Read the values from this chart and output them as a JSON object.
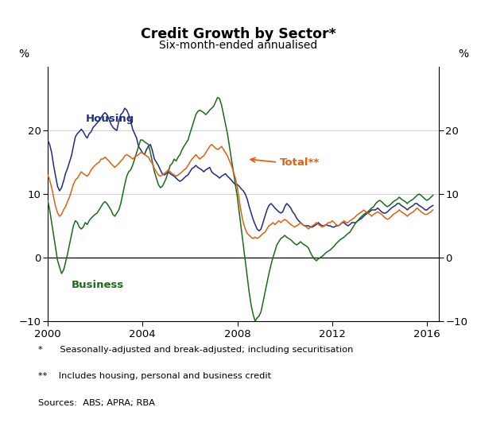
{
  "title": "Credit Growth by Sector*",
  "subtitle": "Six-month-ended annualised",
  "ylabel_left": "%",
  "ylabel_right": "%",
  "ylim": [
    -10,
    30
  ],
  "yticks": [
    -10,
    0,
    10,
    20
  ],
  "xlim": [
    2000.0,
    2016.5
  ],
  "xticks": [
    2000,
    2004,
    2008,
    2012,
    2016
  ],
  "colors": {
    "housing": "#1f2d7e",
    "business": "#1a6b1a",
    "total": "#e06010"
  },
  "footnote1": "*      Seasonally-adjusted and break-adjusted; including securitisation",
  "footnote2": "**    Includes housing, personal and business credit",
  "sources": "Sources:  ABS; APRA; RBA",
  "housing_label": "Housing",
  "business_label": "Business",
  "total_label": "Total**",
  "housing": {
    "t": [
      2000.0,
      2000.083,
      2000.167,
      2000.25,
      2000.333,
      2000.417,
      2000.5,
      2000.583,
      2000.667,
      2000.75,
      2000.833,
      2000.917,
      2001.0,
      2001.083,
      2001.167,
      2001.25,
      2001.333,
      2001.417,
      2001.5,
      2001.583,
      2001.667,
      2001.75,
      2001.833,
      2001.917,
      2002.0,
      2002.083,
      2002.167,
      2002.25,
      2002.333,
      2002.417,
      2002.5,
      2002.583,
      2002.667,
      2002.75,
      2002.833,
      2002.917,
      2003.0,
      2003.083,
      2003.167,
      2003.25,
      2003.333,
      2003.417,
      2003.5,
      2003.583,
      2003.667,
      2003.75,
      2003.833,
      2003.917,
      2004.0,
      2004.083,
      2004.167,
      2004.25,
      2004.333,
      2004.417,
      2004.5,
      2004.583,
      2004.667,
      2004.75,
      2004.833,
      2004.917,
      2005.0,
      2005.083,
      2005.167,
      2005.25,
      2005.333,
      2005.417,
      2005.5,
      2005.583,
      2005.667,
      2005.75,
      2005.833,
      2005.917,
      2006.0,
      2006.083,
      2006.167,
      2006.25,
      2006.333,
      2006.417,
      2006.5,
      2006.583,
      2006.667,
      2006.75,
      2006.833,
      2006.917,
      2007.0,
      2007.083,
      2007.167,
      2007.25,
      2007.333,
      2007.417,
      2007.5,
      2007.583,
      2007.667,
      2007.75,
      2007.833,
      2007.917,
      2008.0,
      2008.083,
      2008.167,
      2008.25,
      2008.333,
      2008.417,
      2008.5,
      2008.583,
      2008.667,
      2008.75,
      2008.833,
      2008.917,
      2009.0,
      2009.083,
      2009.167,
      2009.25,
      2009.333,
      2009.417,
      2009.5,
      2009.583,
      2009.667,
      2009.75,
      2009.833,
      2009.917,
      2010.0,
      2010.083,
      2010.167,
      2010.25,
      2010.333,
      2010.417,
      2010.5,
      2010.583,
      2010.667,
      2010.75,
      2010.833,
      2010.917,
      2011.0,
      2011.083,
      2011.167,
      2011.25,
      2011.333,
      2011.417,
      2011.5,
      2011.583,
      2011.667,
      2011.75,
      2011.833,
      2011.917,
      2012.0,
      2012.083,
      2012.167,
      2012.25,
      2012.333,
      2012.417,
      2012.5,
      2012.583,
      2012.667,
      2012.75,
      2012.833,
      2012.917,
      2013.0,
      2013.083,
      2013.167,
      2013.25,
      2013.333,
      2013.417,
      2013.5,
      2013.583,
      2013.667,
      2013.75,
      2013.833,
      2013.917,
      2014.0,
      2014.083,
      2014.167,
      2014.25,
      2014.333,
      2014.417,
      2014.5,
      2014.583,
      2014.667,
      2014.75,
      2014.833,
      2014.917,
      2015.0,
      2015.083,
      2015.167,
      2015.25,
      2015.333,
      2015.417,
      2015.5,
      2015.583,
      2015.667,
      2015.75,
      2015.833,
      2015.917,
      2016.0,
      2016.083,
      2016.167,
      2016.25
    ],
    "v": [
      18.5,
      17.8,
      16.5,
      14.5,
      12.8,
      11.2,
      10.5,
      11.0,
      12.0,
      13.2,
      14.0,
      15.0,
      16.0,
      17.5,
      19.0,
      19.5,
      19.8,
      20.2,
      19.8,
      19.2,
      18.8,
      19.5,
      19.8,
      20.5,
      20.8,
      21.2,
      21.5,
      22.0,
      22.5,
      22.8,
      22.5,
      21.8,
      21.0,
      20.5,
      20.2,
      20.0,
      21.5,
      22.5,
      22.8,
      23.5,
      23.2,
      22.5,
      21.5,
      20.2,
      19.5,
      18.8,
      17.5,
      17.0,
      16.5,
      16.2,
      17.0,
      17.5,
      17.8,
      16.8,
      15.5,
      15.0,
      14.5,
      13.8,
      13.2,
      13.0,
      13.2,
      13.5,
      13.2,
      13.0,
      12.8,
      12.5,
      12.2,
      12.0,
      12.2,
      12.5,
      12.8,
      13.0,
      13.5,
      14.0,
      14.2,
      14.5,
      14.2,
      14.0,
      13.8,
      13.5,
      13.8,
      14.0,
      14.2,
      13.5,
      13.2,
      13.0,
      12.8,
      12.5,
      12.8,
      13.0,
      13.2,
      12.8,
      12.5,
      12.2,
      11.8,
      11.5,
      11.5,
      11.2,
      10.8,
      10.5,
      10.0,
      9.2,
      8.0,
      7.0,
      6.0,
      5.2,
      4.5,
      4.2,
      4.5,
      5.5,
      6.5,
      7.5,
      8.2,
      8.5,
      8.2,
      7.8,
      7.5,
      7.2,
      7.0,
      7.2,
      8.0,
      8.5,
      8.2,
      7.8,
      7.2,
      6.8,
      6.2,
      5.8,
      5.5,
      5.2,
      5.0,
      5.0,
      5.0,
      4.8,
      4.8,
      5.0,
      5.2,
      5.5,
      5.2,
      5.0,
      5.0,
      5.2,
      5.0,
      5.0,
      4.8,
      4.8,
      5.0,
      5.0,
      5.2,
      5.5,
      5.5,
      5.2,
      5.0,
      5.2,
      5.5,
      5.5,
      5.5,
      5.8,
      6.0,
      6.2,
      6.5,
      6.8,
      7.0,
      7.2,
      7.5,
      7.5,
      7.5,
      7.8,
      7.5,
      7.2,
      7.0,
      7.0,
      7.2,
      7.5,
      7.8,
      8.0,
      8.2,
      8.5,
      8.5,
      8.2,
      8.0,
      7.8,
      7.5,
      7.8,
      8.0,
      8.2,
      8.5,
      8.5,
      8.2,
      8.0,
      7.8,
      7.5,
      7.5,
      7.8,
      8.0,
      8.2
    ]
  },
  "business": {
    "t": [
      2000.0,
      2000.083,
      2000.167,
      2000.25,
      2000.333,
      2000.417,
      2000.5,
      2000.583,
      2000.667,
      2000.75,
      2000.833,
      2000.917,
      2001.0,
      2001.083,
      2001.167,
      2001.25,
      2001.333,
      2001.417,
      2001.5,
      2001.583,
      2001.667,
      2001.75,
      2001.833,
      2001.917,
      2002.0,
      2002.083,
      2002.167,
      2002.25,
      2002.333,
      2002.417,
      2002.5,
      2002.583,
      2002.667,
      2002.75,
      2002.833,
      2002.917,
      2003.0,
      2003.083,
      2003.167,
      2003.25,
      2003.333,
      2003.417,
      2003.5,
      2003.583,
      2003.667,
      2003.75,
      2003.833,
      2003.917,
      2004.0,
      2004.083,
      2004.167,
      2004.25,
      2004.333,
      2004.417,
      2004.5,
      2004.583,
      2004.667,
      2004.75,
      2004.833,
      2004.917,
      2005.0,
      2005.083,
      2005.167,
      2005.25,
      2005.333,
      2005.417,
      2005.5,
      2005.583,
      2005.667,
      2005.75,
      2005.833,
      2005.917,
      2006.0,
      2006.083,
      2006.167,
      2006.25,
      2006.333,
      2006.417,
      2006.5,
      2006.583,
      2006.667,
      2006.75,
      2006.833,
      2006.917,
      2007.0,
      2007.083,
      2007.167,
      2007.25,
      2007.333,
      2007.417,
      2007.5,
      2007.583,
      2007.667,
      2007.75,
      2007.833,
      2007.917,
      2008.0,
      2008.083,
      2008.167,
      2008.25,
      2008.333,
      2008.417,
      2008.5,
      2008.583,
      2008.667,
      2008.75,
      2008.833,
      2008.917,
      2009.0,
      2009.083,
      2009.167,
      2009.25,
      2009.333,
      2009.417,
      2009.5,
      2009.583,
      2009.667,
      2009.75,
      2009.833,
      2009.917,
      2010.0,
      2010.083,
      2010.167,
      2010.25,
      2010.333,
      2010.417,
      2010.5,
      2010.583,
      2010.667,
      2010.75,
      2010.833,
      2010.917,
      2011.0,
      2011.083,
      2011.167,
      2011.25,
      2011.333,
      2011.417,
      2011.5,
      2011.583,
      2011.667,
      2011.75,
      2011.833,
      2011.917,
      2012.0,
      2012.083,
      2012.167,
      2012.25,
      2012.333,
      2012.417,
      2012.5,
      2012.583,
      2012.667,
      2012.75,
      2012.833,
      2012.917,
      2013.0,
      2013.083,
      2013.167,
      2013.25,
      2013.333,
      2013.417,
      2013.5,
      2013.583,
      2013.667,
      2013.75,
      2013.833,
      2013.917,
      2014.0,
      2014.083,
      2014.167,
      2014.25,
      2014.333,
      2014.417,
      2014.5,
      2014.583,
      2014.667,
      2014.75,
      2014.833,
      2014.917,
      2015.0,
      2015.083,
      2015.167,
      2015.25,
      2015.333,
      2015.417,
      2015.5,
      2015.583,
      2015.667,
      2015.75,
      2015.833,
      2015.917,
      2016.0,
      2016.083,
      2016.167,
      2016.25
    ],
    "v": [
      9.0,
      7.5,
      5.5,
      3.5,
      1.5,
      -0.5,
      -1.5,
      -2.5,
      -2.0,
      -0.8,
      0.5,
      2.0,
      3.5,
      5.0,
      5.8,
      5.5,
      4.8,
      4.5,
      4.8,
      5.5,
      5.2,
      5.8,
      6.2,
      6.5,
      6.8,
      7.0,
      7.5,
      8.0,
      8.5,
      8.8,
      8.5,
      8.0,
      7.5,
      6.8,
      6.5,
      7.0,
      7.5,
      8.5,
      10.0,
      11.5,
      12.8,
      13.5,
      13.8,
      14.5,
      15.5,
      16.5,
      17.5,
      18.5,
      18.5,
      18.2,
      18.0,
      17.8,
      16.5,
      15.0,
      13.5,
      12.5,
      11.5,
      11.0,
      11.2,
      11.8,
      12.5,
      13.5,
      14.5,
      14.8,
      15.5,
      15.2,
      15.8,
      16.2,
      17.0,
      17.5,
      18.0,
      18.5,
      19.5,
      20.5,
      21.5,
      22.5,
      23.0,
      23.2,
      23.0,
      22.8,
      22.5,
      22.8,
      23.2,
      23.5,
      23.8,
      24.5,
      25.2,
      25.0,
      24.0,
      22.5,
      21.0,
      19.5,
      17.5,
      15.5,
      13.5,
      11.5,
      9.5,
      7.0,
      4.5,
      2.0,
      -0.5,
      -3.0,
      -5.5,
      -7.5,
      -9.0,
      -10.0,
      -9.5,
      -9.2,
      -8.5,
      -7.0,
      -5.5,
      -4.0,
      -2.5,
      -1.2,
      0.0,
      1.0,
      2.0,
      2.5,
      3.0,
      3.2,
      3.5,
      3.2,
      3.0,
      2.8,
      2.5,
      2.2,
      2.0,
      2.2,
      2.5,
      2.2,
      2.0,
      1.8,
      1.5,
      0.8,
      0.2,
      -0.2,
      -0.5,
      -0.2,
      0.0,
      0.2,
      0.5,
      0.8,
      1.0,
      1.2,
      1.5,
      1.8,
      2.2,
      2.5,
      2.8,
      3.0,
      3.2,
      3.5,
      3.8,
      4.0,
      4.5,
      5.0,
      5.5,
      5.8,
      6.2,
      6.5,
      6.8,
      7.0,
      7.2,
      7.5,
      7.8,
      8.0,
      8.5,
      8.8,
      9.0,
      8.8,
      8.5,
      8.2,
      8.0,
      8.2,
      8.5,
      8.8,
      9.0,
      9.2,
      9.5,
      9.2,
      9.0,
      8.8,
      8.5,
      8.8,
      9.0,
      9.2,
      9.5,
      9.8,
      10.0,
      9.8,
      9.5,
      9.2,
      9.0,
      9.2,
      9.5,
      9.8
    ]
  },
  "total": {
    "t": [
      2000.0,
      2000.083,
      2000.167,
      2000.25,
      2000.333,
      2000.417,
      2000.5,
      2000.583,
      2000.667,
      2000.75,
      2000.833,
      2000.917,
      2001.0,
      2001.083,
      2001.167,
      2001.25,
      2001.333,
      2001.417,
      2001.5,
      2001.583,
      2001.667,
      2001.75,
      2001.833,
      2001.917,
      2002.0,
      2002.083,
      2002.167,
      2002.25,
      2002.333,
      2002.417,
      2002.5,
      2002.583,
      2002.667,
      2002.75,
      2002.833,
      2002.917,
      2003.0,
      2003.083,
      2003.167,
      2003.25,
      2003.333,
      2003.417,
      2003.5,
      2003.583,
      2003.667,
      2003.75,
      2003.833,
      2003.917,
      2004.0,
      2004.083,
      2004.167,
      2004.25,
      2004.333,
      2004.417,
      2004.5,
      2004.583,
      2004.667,
      2004.75,
      2004.833,
      2004.917,
      2005.0,
      2005.083,
      2005.167,
      2005.25,
      2005.333,
      2005.417,
      2005.5,
      2005.583,
      2005.667,
      2005.75,
      2005.833,
      2005.917,
      2006.0,
      2006.083,
      2006.167,
      2006.25,
      2006.333,
      2006.417,
      2006.5,
      2006.583,
      2006.667,
      2006.75,
      2006.833,
      2006.917,
      2007.0,
      2007.083,
      2007.167,
      2007.25,
      2007.333,
      2007.417,
      2007.5,
      2007.583,
      2007.667,
      2007.75,
      2007.833,
      2007.917,
      2008.0,
      2008.083,
      2008.167,
      2008.25,
      2008.333,
      2008.417,
      2008.5,
      2008.583,
      2008.667,
      2008.75,
      2008.833,
      2008.917,
      2009.0,
      2009.083,
      2009.167,
      2009.25,
      2009.333,
      2009.417,
      2009.5,
      2009.583,
      2009.667,
      2009.75,
      2009.833,
      2009.917,
      2010.0,
      2010.083,
      2010.167,
      2010.25,
      2010.333,
      2010.417,
      2010.5,
      2010.583,
      2010.667,
      2010.75,
      2010.833,
      2010.917,
      2011.0,
      2011.083,
      2011.167,
      2011.25,
      2011.333,
      2011.417,
      2011.5,
      2011.583,
      2011.667,
      2011.75,
      2011.833,
      2011.917,
      2012.0,
      2012.083,
      2012.167,
      2012.25,
      2012.333,
      2012.417,
      2012.5,
      2012.583,
      2012.667,
      2012.75,
      2012.833,
      2012.917,
      2013.0,
      2013.083,
      2013.167,
      2013.25,
      2013.333,
      2013.417,
      2013.5,
      2013.583,
      2013.667,
      2013.75,
      2013.833,
      2013.917,
      2014.0,
      2014.083,
      2014.167,
      2014.25,
      2014.333,
      2014.417,
      2014.5,
      2014.583,
      2014.667,
      2014.75,
      2014.833,
      2014.917,
      2015.0,
      2015.083,
      2015.167,
      2015.25,
      2015.333,
      2015.417,
      2015.5,
      2015.583,
      2015.667,
      2015.75,
      2015.833,
      2015.917,
      2016.0,
      2016.083,
      2016.167,
      2016.25
    ],
    "v": [
      13.0,
      12.2,
      11.0,
      9.5,
      8.0,
      7.0,
      6.5,
      6.8,
      7.5,
      8.0,
      8.8,
      9.5,
      10.5,
      11.5,
      12.2,
      12.5,
      13.0,
      13.5,
      13.2,
      13.0,
      12.8,
      13.2,
      13.8,
      14.2,
      14.5,
      14.8,
      15.0,
      15.5,
      15.5,
      15.8,
      15.5,
      15.2,
      14.8,
      14.5,
      14.2,
      14.5,
      14.8,
      15.2,
      15.5,
      16.0,
      16.2,
      16.0,
      15.8,
      15.5,
      15.8,
      16.0,
      16.2,
      16.5,
      16.5,
      16.2,
      16.0,
      15.8,
      15.2,
      14.8,
      14.0,
      13.5,
      13.0,
      12.8,
      13.0,
      13.2,
      13.5,
      13.8,
      13.5,
      13.2,
      13.0,
      12.8,
      13.0,
      13.2,
      13.5,
      13.8,
      14.0,
      14.5,
      15.0,
      15.5,
      15.8,
      16.2,
      15.8,
      15.5,
      15.8,
      16.0,
      16.5,
      17.0,
      17.5,
      17.8,
      17.5,
      17.2,
      17.0,
      17.2,
      17.5,
      17.0,
      16.5,
      16.0,
      15.2,
      14.5,
      13.5,
      12.5,
      11.0,
      9.0,
      7.0,
      5.5,
      4.5,
      3.8,
      3.5,
      3.2,
      3.0,
      3.2,
      3.0,
      3.2,
      3.5,
      3.8,
      4.0,
      4.5,
      5.0,
      5.2,
      5.5,
      5.2,
      5.5,
      5.8,
      5.5,
      5.8,
      6.0,
      5.8,
      5.5,
      5.2,
      5.0,
      4.8,
      5.0,
      5.2,
      5.5,
      5.2,
      5.0,
      4.8,
      4.5,
      4.8,
      5.0,
      5.2,
      5.5,
      5.2,
      5.0,
      4.8,
      5.0,
      5.2,
      5.5,
      5.5,
      5.8,
      5.5,
      5.2,
      5.0,
      5.2,
      5.5,
      5.8,
      5.5,
      5.5,
      5.8,
      6.0,
      6.2,
      6.5,
      6.8,
      7.0,
      7.2,
      7.5,
      7.2,
      7.0,
      6.8,
      6.5,
      6.8,
      7.0,
      7.2,
      7.0,
      6.8,
      6.5,
      6.2,
      6.0,
      6.2,
      6.5,
      6.8,
      7.0,
      7.2,
      7.5,
      7.2,
      7.0,
      6.8,
      6.5,
      6.8,
      7.0,
      7.2,
      7.5,
      7.8,
      7.5,
      7.2,
      7.0,
      6.8,
      6.8,
      7.0,
      7.2,
      7.5
    ]
  }
}
